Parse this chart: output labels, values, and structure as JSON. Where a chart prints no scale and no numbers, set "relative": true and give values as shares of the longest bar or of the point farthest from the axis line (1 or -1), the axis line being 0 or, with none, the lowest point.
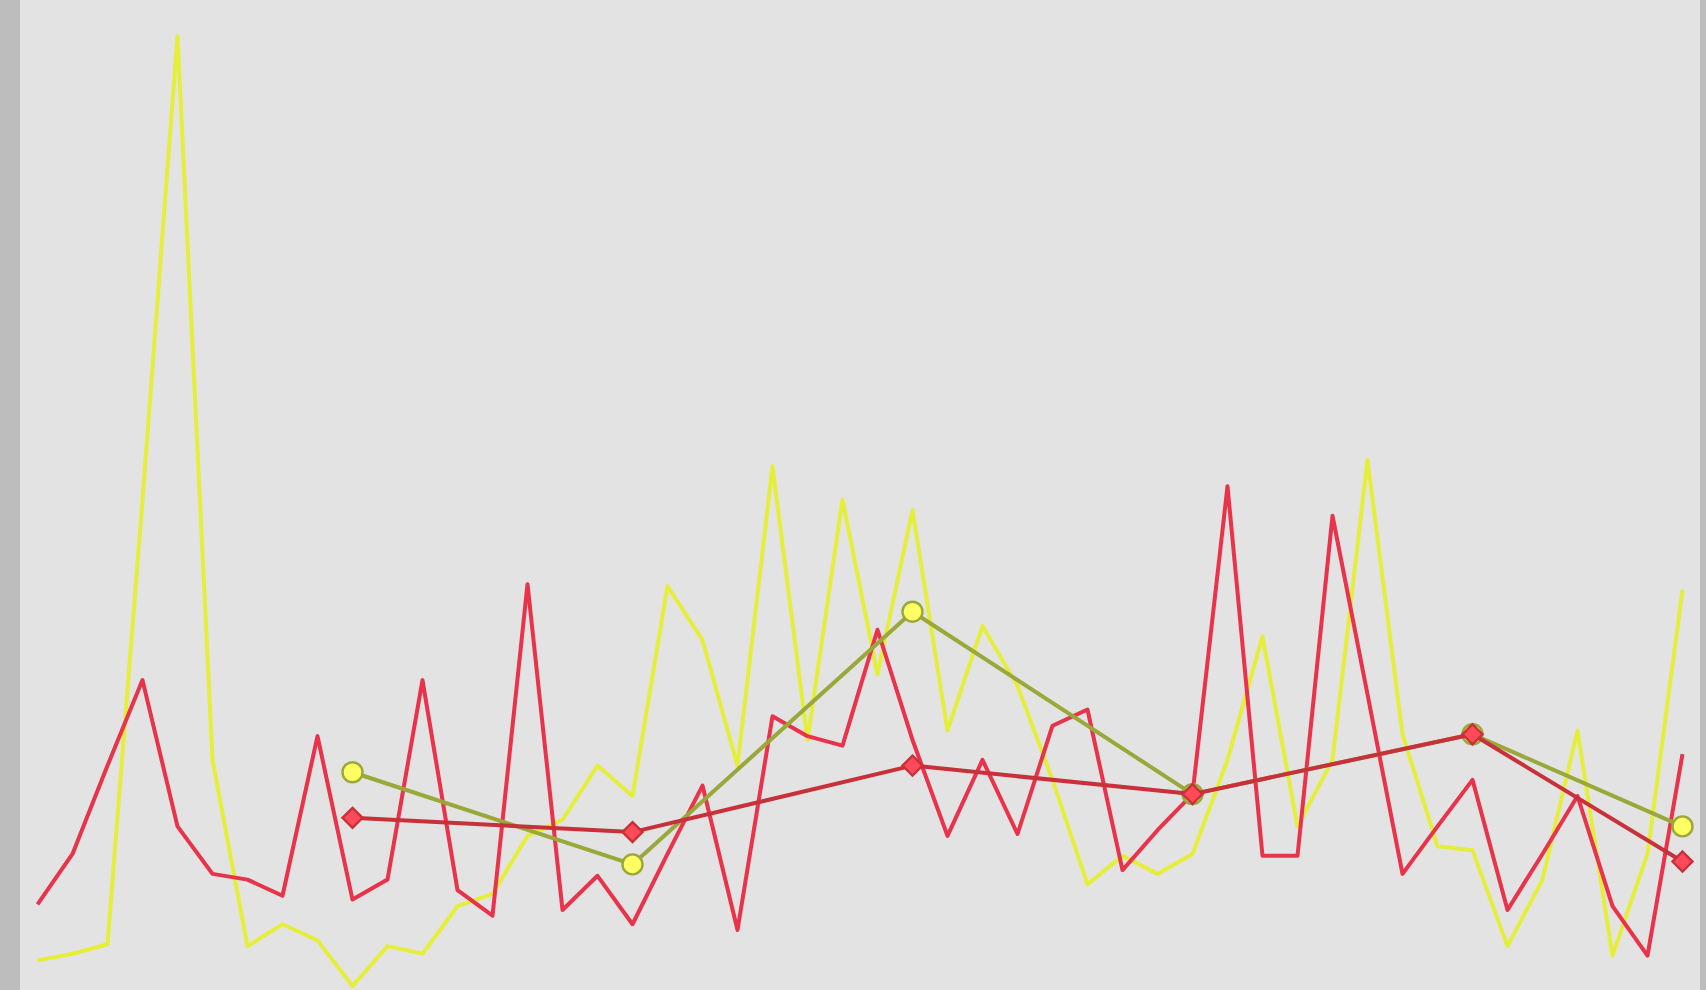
{
  "chart_data": {
    "type": "line",
    "relative": true,
    "marker": "none",
    "categories": [
      null,
      null,
      null,
      null,
      null,
      null,
      null,
      null,
      null,
      null,
      null,
      null,
      null,
      null,
      null,
      null,
      null,
      null,
      null,
      null,
      null,
      null,
      null,
      null,
      null,
      null,
      null,
      null,
      null,
      null,
      null,
      null,
      null,
      null,
      null,
      null,
      null,
      null,
      null,
      null,
      null,
      null,
      null,
      null,
      null,
      null,
      null,
      null
    ],
    "series": [
      {
        "color": "#e6ee3c",
        "values": [
          0.027,
          0.034,
          0.044,
          0.512,
          1,
          0.238,
          0.042,
          0.065,
          0.048,
          0,
          0.042,
          0.034,
          0.084,
          0.097,
          0.158,
          0.175,
          0.232,
          0.2,
          0.421,
          0.364,
          0.232,
          0.547,
          0.259,
          0.512,
          0.328,
          0.501,
          0.269,
          0.379,
          0.316,
          0.217,
          0.107,
          0.137,
          0.118,
          0.139,
          0.238,
          0.368,
          0.168,
          0.238,
          0.554,
          0.265,
          0.147,
          0.143,
          0.042,
          0.112,
          0.269,
          0.032,
          0.139,
          0.417
        ]
      },
      {
        "color": "#e8334a",
        "values": [
          0.086,
          0.139,
          0.232,
          0.322,
          0.168,
          0.118,
          0.112,
          0.095,
          0.263,
          0.091,
          0.112,
          0.322,
          0.101,
          0.074,
          0.423,
          0.08,
          0.116,
          0.065,
          0.139,
          0.211,
          0.059,
          0.284,
          0.263,
          0.253,
          0.375,
          0.259,
          0.158,
          0.238,
          0.16,
          0.274,
          0.291,
          0.122,
          0.164,
          0.202,
          0.526,
          0.137,
          0.137,
          0.495,
          0.307,
          0.118,
          0.168,
          0.217,
          0.08,
          0.139,
          0.2,
          0.084,
          0.032,
          0.244
        ]
      },
      {
        "color": "#9aa83a",
        "marker": "circle",
        "values": [
          null,
          null,
          null,
          null,
          null,
          null,
          null,
          null,
          null,
          0.225,
          null,
          null,
          null,
          null,
          null,
          null,
          null,
          0.128,
          null,
          null,
          null,
          null,
          null,
          null,
          null,
          0.394,
          null,
          null,
          null,
          null,
          null,
          null,
          null,
          0.202,
          null,
          null,
          null,
          null,
          null,
          null,
          null,
          0.265,
          null,
          null,
          null,
          null,
          null,
          0.168
        ]
      },
      {
        "color": "#c8303a",
        "marker": "diamond",
        "values": [
          null,
          null,
          null,
          null,
          null,
          null,
          null,
          null,
          null,
          0.177,
          null,
          null,
          null,
          null,
          null,
          null,
          null,
          0.162,
          null,
          null,
          null,
          null,
          null,
          null,
          null,
          0.232,
          null,
          null,
          null,
          null,
          null,
          null,
          null,
          0.202,
          null,
          null,
          null,
          null,
          null,
          null,
          null,
          0.265,
          null,
          null,
          null,
          null,
          null,
          0.131
        ]
      }
    ]
  }
}
